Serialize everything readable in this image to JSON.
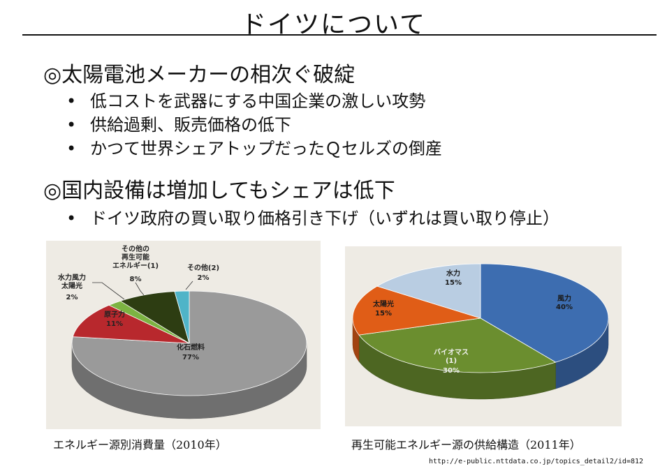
{
  "slide": {
    "title": "ドイツについて",
    "sections": [
      {
        "heading": "◎太陽電池メーカーの相次ぐ破綻",
        "bullets": [
          "低コストを武器にする中国企業の激しい攻勢",
          "供給過剰、販売価格の低下",
          "かつて世界シェアトップだったＱセルズの倒産"
        ]
      },
      {
        "heading": "◎国内設備は増加してもシェアは低下",
        "bullets": [
          "ドイツ政府の買い取り価格引き下げ（いずれは買い取り停止）"
        ]
      }
    ],
    "bullet_glyph": "•",
    "source_url": "http://e-public.nttdata.co.jp/topics_detail2/id=812"
  },
  "chart_data": [
    {
      "type": "pie",
      "caption": "エネルギー源別消費量（2010年）",
      "slices": [
        {
          "label": "化石燃料",
          "value": 77,
          "value_label": "77%",
          "color": "#9a9a9a"
        },
        {
          "label": "原子力",
          "value": 11,
          "value_label": "11%",
          "color": "#b8282d"
        },
        {
          "label": "水力風力\n太陽光",
          "value": 2,
          "value_label": "2%",
          "color": "#7cb342"
        },
        {
          "label": "その他の\n再生可能\nエネルギー(1)",
          "value": 8,
          "value_label": "8%",
          "color": "#2d3d12"
        },
        {
          "label": "その他(2)",
          "value": 2,
          "value_label": "2%",
          "color": "#4fb4c8"
        }
      ],
      "background": "#eeebe4"
    },
    {
      "type": "pie",
      "caption": "再生可能エネルギー源の供給構造（2011年）",
      "slices": [
        {
          "label": "風力",
          "value": 40,
          "value_label": "40%",
          "color": "#3d6db0"
        },
        {
          "label": "バイオマス\n(1)",
          "value": 30,
          "value_label": "30%",
          "color": "#6b8e2f"
        },
        {
          "label": "太陽光",
          "value": 15,
          "value_label": "15%",
          "color": "#e05d17"
        },
        {
          "label": "水力",
          "value": 15,
          "value_label": "15%",
          "color": "#b9cde2"
        }
      ],
      "background": "#eeebe4"
    }
  ]
}
